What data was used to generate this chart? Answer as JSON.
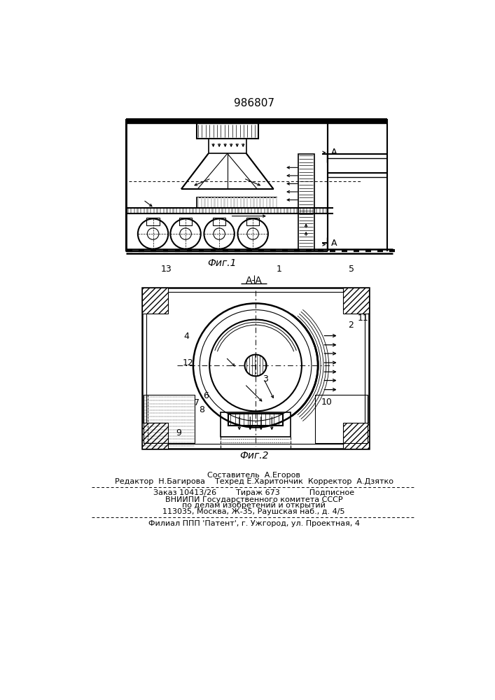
{
  "patent_number": "986807",
  "bg_color": "#ffffff",
  "line_color": "#000000",
  "fig1_label": "Фиг.1",
  "fig2_label": "Фиг.2",
  "section_label": "А-А"
}
